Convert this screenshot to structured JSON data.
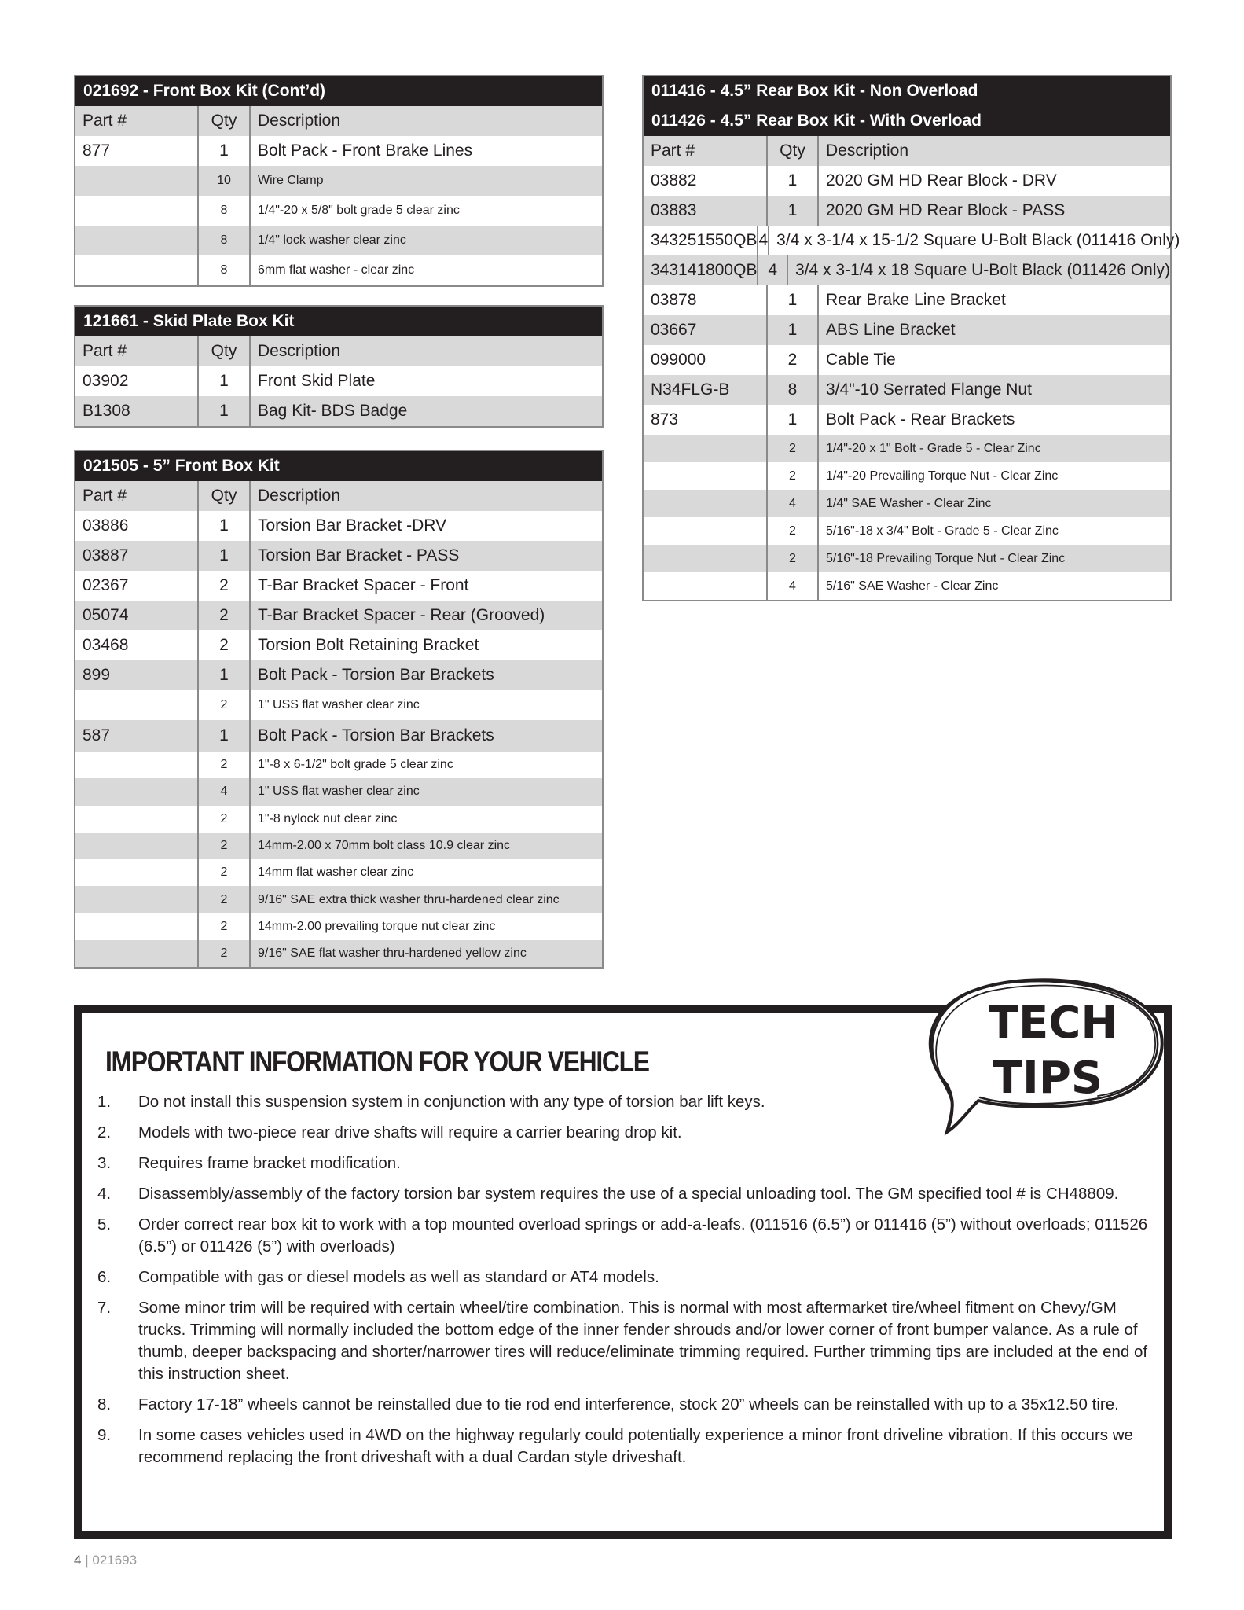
{
  "columns": {
    "part": "Part #",
    "qty": "Qty",
    "desc": "Description"
  },
  "tables": [
    {
      "id": "t1",
      "titles": [
        "021692 - Front Box Kit (Cont’d)"
      ],
      "rows": [
        [
          "877",
          "1",
          "Bolt Pack - Front Brake Lines"
        ],
        [
          "",
          "10",
          "Wire Clamp"
        ],
        [
          "",
          "8",
          "1/4\"-20 x 5/8\" bolt grade 5 clear zinc"
        ],
        [
          "",
          "8",
          "1/4\" lock washer clear zinc"
        ],
        [
          "",
          "8",
          "6mm flat washer  - clear zinc"
        ]
      ]
    },
    {
      "id": "t2",
      "titles": [
        "121661 - Skid Plate Box Kit"
      ],
      "rows": [
        [
          "03902",
          "1",
          "Front Skid Plate"
        ],
        [
          "B1308",
          "1",
          "Bag Kit- BDS Badge"
        ]
      ]
    },
    {
      "id": "t3",
      "titles": [
        "021505 - 5” Front Box Kit"
      ],
      "rows": [
        [
          "03886",
          "1",
          "Torsion Bar Bracket -DRV"
        ],
        [
          "03887",
          "1",
          "Torsion Bar Bracket - PASS"
        ],
        [
          "02367",
          "2",
          "T-Bar Bracket Spacer - Front"
        ],
        [
          "05074",
          "2",
          "T-Bar Bracket Spacer - Rear (Grooved)"
        ],
        [
          "03468",
          "2",
          "Torsion Bolt Retaining Bracket"
        ],
        [
          "899",
          "1",
          "Bolt Pack - Torsion Bar Brackets"
        ],
        [
          "",
          "2",
          "1\" USS flat washer clear zinc"
        ],
        [
          "587",
          "1",
          "Bolt Pack - Torsion Bar Brackets"
        ],
        [
          "",
          "2",
          "1\"-8 x 6-1/2\" bolt grade 5 clear zinc"
        ],
        [
          "",
          "4",
          "1\" USS flat washer clear zinc"
        ],
        [
          "",
          "2",
          "1\"-8 nylock nut clear zinc"
        ],
        [
          "",
          "2",
          "14mm-2.00 x 70mm bolt class 10.9 clear zinc"
        ],
        [
          "",
          "2",
          "14mm flat washer clear zinc"
        ],
        [
          "",
          "2",
          "9/16\" SAE extra thick washer thru-hardened clear zinc"
        ],
        [
          "",
          "2",
          "14mm-2.00 prevailing torque nut clear zinc"
        ],
        [
          "",
          "2",
          "9/16\" SAE flat washer thru-hardened yellow zinc"
        ]
      ]
    },
    {
      "id": "t4",
      "titles": [
        "011416 - 4.5” Rear Box Kit - Non Overload",
        "011426 - 4.5” Rear Box Kit - With Overload"
      ],
      "rows": [
        [
          "03882",
          "1",
          "2020 GM HD Rear Block - DRV"
        ],
        [
          "03883",
          "1",
          "2020 GM HD Rear Block - PASS"
        ],
        [
          "343251550QB",
          "4",
          "3/4 x 3-1/4 x 15-1/2 Square U-Bolt Black (011416 Only)"
        ],
        [
          "343141800QB",
          "4",
          "3/4 x 3-1/4 x 18 Square U-Bolt Black (011426 Only)"
        ],
        [
          "03878",
          "1",
          "Rear Brake Line Bracket"
        ],
        [
          "03667",
          "1",
          "ABS Line Bracket"
        ],
        [
          "099000",
          "2",
          "Cable Tie"
        ],
        [
          "N34FLG-B",
          "8",
          "3/4\"-10 Serrated Flange Nut"
        ],
        [
          "873",
          "1",
          "Bolt Pack - Rear Brackets"
        ],
        [
          "",
          "2",
          "1/4\"-20 x 1\" Bolt - Grade 5 - Clear Zinc"
        ],
        [
          "",
          "2",
          "1/4\"-20 Prevailing Torque Nut - Clear Zinc"
        ],
        [
          "",
          "4",
          "1/4\" SAE Washer - Clear Zinc"
        ],
        [
          "",
          "2",
          "5/16\"-18 x 3/4\" Bolt - Grade 5 - Clear Zinc"
        ],
        [
          "",
          "2",
          "5/16\"-18 Prevailing Torque Nut - Clear Zinc"
        ],
        [
          "",
          "4",
          "5/16\" SAE Washer - Clear Zinc"
        ]
      ]
    }
  ],
  "info": {
    "title": "IMPORTANT INFORMATION FOR YOUR VEHICLE",
    "items": [
      {
        "n": "1.",
        "t": "Do not install this suspension system in conjunction with any type of torsion bar lift keys."
      },
      {
        "n": "2.",
        "t": "Models with two-piece rear drive shafts will require a carrier bearing drop kit."
      },
      {
        "n": "3.",
        "t": "Requires frame bracket modification."
      },
      {
        "n": "4.",
        "t": "Disassembly/assembly of the factory torsion bar system requires the use of a special unloading tool.  The GM specified tool # is CH48809."
      },
      {
        "n": "5.",
        "t": "Order correct rear box kit to work with a top mounted overload springs or add-a-leafs. (011516 (6.5”) or 011416 (5”) without overloads; 011526 (6.5”) or 011426 (5”) with overloads)"
      },
      {
        "n": "6.",
        "t": "Compatible with gas or diesel models as well as standard or AT4 models."
      },
      {
        "n": "7.",
        "t": "Some minor trim will be required with certain wheel/tire combination.  This is normal with most aftermarket tire/wheel fitment on Chevy/GM trucks.  Trimming will normally included the bottom edge of the inner fender shrouds and/or lower corner of front bumper valance.  As a rule of thumb, deeper backspacing and shorter/narrower tires will reduce/eliminate trimming required. Further trimming tips are included at the end of this instruction sheet."
      },
      {
        "n": "8.",
        "t": "Factory 17-18” wheels cannot be reinstalled due to tie rod end interference, stock 20” wheels can be reinstalled with up to a 35x12.50 tire."
      },
      {
        "n": "9.",
        "t": "In some cases vehicles used in 4WD on the highway regularly could potentially experience a minor front driveline vibration. If this occurs we recommend replacing the front driveshaft with a dual Cardan style driveshaft."
      }
    ]
  },
  "tech_tips": {
    "line1": "TECH",
    "line2": "TIPS",
    "icon": "speech-bubble-icon"
  },
  "footer": {
    "page": "4",
    "separator": "|",
    "doc": "021693"
  },
  "colors": {
    "header_bg": "#231f20",
    "row_alt": "#d9d9d9",
    "border": "#8a8a8a"
  }
}
